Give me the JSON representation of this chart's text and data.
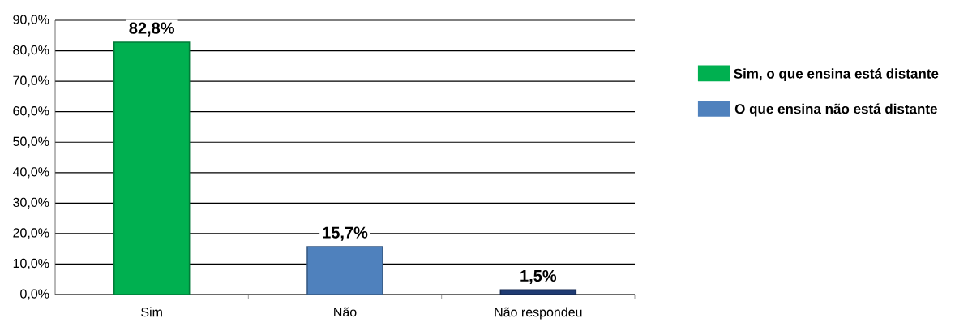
{
  "chart_data": {
    "type": "bar",
    "categories": [
      "Sim",
      "Não",
      "Não respondeu"
    ],
    "series": [
      {
        "name": "Sim, o que ensina está distante",
        "color": "#00b050",
        "values": [
          82.8,
          null,
          null
        ],
        "value_labels": [
          "82,8%",
          null,
          null
        ]
      },
      {
        "name": "O que ensina não está distante",
        "color": "#4f81bd",
        "values": [
          null,
          15.7,
          null
        ],
        "value_labels": [
          null,
          "15,7%",
          null
        ]
      },
      {
        "color": "#1f3b73",
        "values": [
          null,
          null,
          1.5
        ],
        "value_labels": [
          null,
          null,
          "1,5%"
        ]
      }
    ],
    "ylim": [
      0,
      90
    ],
    "yticks": [
      {
        "value": 0,
        "label": "0,0%"
      },
      {
        "value": 10,
        "label": "10,0%"
      },
      {
        "value": 20,
        "label": "20,0%"
      },
      {
        "value": 30,
        "label": "30,0%"
      },
      {
        "value": 40,
        "label": "40,0%"
      },
      {
        "value": 50,
        "label": "50,0%"
      },
      {
        "value": 60,
        "label": "60,0%"
      },
      {
        "value": 70,
        "label": "70,0%"
      },
      {
        "value": 80,
        "label": "80,0%"
      },
      {
        "value": 90,
        "label": "90,0%"
      }
    ],
    "grid": "y",
    "legend": "right"
  }
}
